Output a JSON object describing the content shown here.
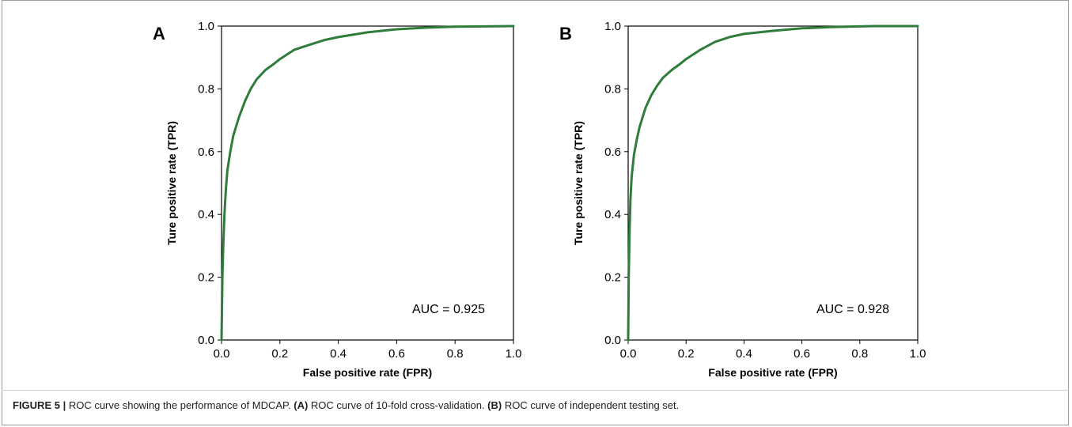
{
  "chart_data": [
    {
      "type": "line",
      "panel_label": "A",
      "xlabel": "False positive rate (FPR)",
      "ylabel": "Ture positive rate (TPR)",
      "xlim": [
        0.0,
        1.0
      ],
      "ylim": [
        0.0,
        1.0
      ],
      "xticks": [
        "0.0",
        "0.2",
        "0.4",
        "0.6",
        "0.8",
        "1.0"
      ],
      "yticks": [
        "0.0",
        "0.2",
        "0.4",
        "0.6",
        "0.8",
        "1.0"
      ],
      "grid": false,
      "annotation": "AUC = 0.925",
      "series": [
        {
          "color": "#2e7d3a",
          "x": [
            0.0,
            0.003,
            0.006,
            0.01,
            0.015,
            0.02,
            0.03,
            0.04,
            0.05,
            0.06,
            0.08,
            0.1,
            0.12,
            0.15,
            0.18,
            0.2,
            0.25,
            0.3,
            0.35,
            0.4,
            0.5,
            0.6,
            0.7,
            0.8,
            0.9,
            1.0
          ],
          "y": [
            0.0,
            0.2,
            0.3,
            0.4,
            0.48,
            0.54,
            0.6,
            0.65,
            0.68,
            0.71,
            0.76,
            0.8,
            0.83,
            0.86,
            0.88,
            0.895,
            0.925,
            0.94,
            0.955,
            0.965,
            0.98,
            0.99,
            0.995,
            0.998,
            0.999,
            1.0
          ]
        }
      ]
    },
    {
      "type": "line",
      "panel_label": "B",
      "xlabel": "False positive rate (FPR)",
      "ylabel": "Ture positive rate (TPR)",
      "xlim": [
        0.0,
        1.0
      ],
      "ylim": [
        0.0,
        1.0
      ],
      "xticks": [
        "0.0",
        "0.2",
        "0.4",
        "0.6",
        "0.8",
        "1.0"
      ],
      "yticks": [
        "0.0",
        "0.2",
        "0.4",
        "0.6",
        "0.8",
        "1.0"
      ],
      "grid": false,
      "annotation": "AUC = 0.928",
      "series": [
        {
          "color": "#2e7d3a",
          "x": [
            0.0,
            0.002,
            0.005,
            0.008,
            0.012,
            0.02,
            0.03,
            0.04,
            0.05,
            0.06,
            0.08,
            0.1,
            0.12,
            0.15,
            0.18,
            0.2,
            0.25,
            0.3,
            0.35,
            0.4,
            0.5,
            0.6,
            0.7,
            0.8,
            0.85,
            0.9,
            1.0
          ],
          "y": [
            0.0,
            0.2,
            0.35,
            0.45,
            0.52,
            0.59,
            0.64,
            0.68,
            0.71,
            0.74,
            0.78,
            0.81,
            0.835,
            0.86,
            0.88,
            0.895,
            0.925,
            0.95,
            0.965,
            0.975,
            0.985,
            0.993,
            0.997,
            0.999,
            1.0,
            1.0,
            1.0
          ]
        }
      ]
    }
  ],
  "caption": {
    "figure_label": "FIGURE 5 |",
    "text_1": " ROC curve showing the performance of MDCAP. ",
    "label_a": "(A)",
    "text_2": " ROC curve of 10-fold cross-validation. ",
    "label_b": "(B)",
    "text_3": " ROC curve of independent testing set."
  }
}
